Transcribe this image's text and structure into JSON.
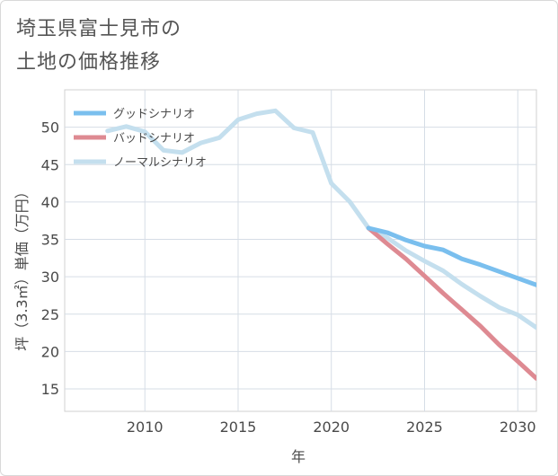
{
  "title_line1": "埼玉県富士見市の",
  "title_line2": "土地の価格推移",
  "chart_data": {
    "type": "line",
    "xlabel": "年",
    "ylabel": "坪（3.3㎡）単価（万円）",
    "xlim": [
      2005.7,
      2031
    ],
    "ylim": [
      12,
      55
    ],
    "xticks": [
      2010,
      2015,
      2020,
      2025,
      2030
    ],
    "yticks": [
      15,
      20,
      25,
      30,
      35,
      40,
      45,
      50
    ],
    "grid": true,
    "legend_position": "top-left",
    "series": [
      {
        "name": "グッドシナリオ",
        "color": "#7abfee",
        "x": [
          2022,
          2023,
          2024,
          2025,
          2026,
          2027,
          2028,
          2029,
          2030,
          2031
        ],
        "values": [
          36.5,
          35.9,
          34.9,
          34.1,
          33.6,
          32.4,
          31.6,
          30.7,
          29.8,
          28.9
        ]
      },
      {
        "name": "バッドシナリオ",
        "color": "#de8a92",
        "x": [
          2022,
          2023,
          2024,
          2025,
          2026,
          2027,
          2028,
          2029,
          2030,
          2031
        ],
        "values": [
          36.5,
          34.4,
          32.4,
          30.1,
          27.8,
          25.6,
          23.4,
          20.9,
          18.7,
          16.4
        ]
      },
      {
        "name": "ノーマルシナリオ",
        "color": "#c4dfee",
        "x": [
          2008,
          2009,
          2010,
          2011,
          2012,
          2013,
          2014,
          2015,
          2016,
          2017,
          2018,
          2019,
          2020,
          2021,
          2022,
          2023,
          2024,
          2025,
          2026,
          2027,
          2028,
          2029,
          2030,
          2031
        ],
        "values": [
          49.5,
          50.1,
          49.4,
          46.9,
          46.6,
          47.9,
          48.6,
          51.0,
          51.8,
          52.2,
          49.9,
          49.3,
          42.5,
          40.0,
          36.5,
          35.2,
          33.5,
          32.1,
          30.8,
          29.0,
          27.4,
          25.9,
          24.9,
          23.2
        ]
      }
    ]
  }
}
